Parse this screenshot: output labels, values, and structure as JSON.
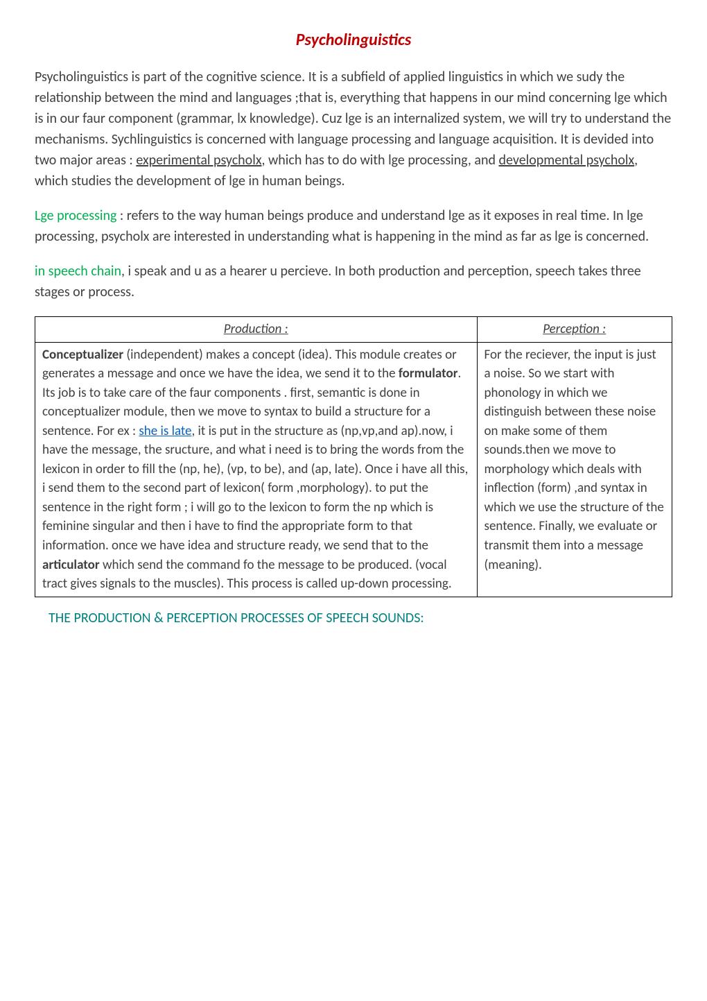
{
  "colors": {
    "title": "#c00000",
    "body_text": "#404040",
    "green_term": "#00b050",
    "link_blue": "#0563c1",
    "footer_teal": "#008080",
    "black": "#000000"
  },
  "title": "Psycholinguistics",
  "para1_pre": "Psycholinguistics is part of the cognitive science. It is a subfield of applied linguistics in which we sudy the relationship between the mind and languages ;that is, everything that happens in our mind concerning lge which is in our faur component (grammar, lx knowledge). Cuz lge is an internalized system, we will try to understand the mechanisms. Sychlinguistics is concerned with language processing and language acquisition. It is devided into two major areas : ",
  "para1_u1": "experimental psycholx",
  "para1_mid": ", which has to do with lge processing, and ",
  "para1_u2": "developmental psycholx",
  "para1_post": ", which studies the development of lge in human beings.",
  "para2_term": "Lge processing",
  "para2_rest": " : refers to the way human beings produce and understand lge as it exposes in real time. In lge processing, psycholx are interested in understanding what is happening in the mind as far as lge is concerned.",
  "para3_term": "in speech chain",
  "para3_rest": ", i speak and u as a hearer u percieve. In both production and perception, speech takes three stages or process.",
  "table": {
    "header_left": "Production :",
    "header_right": "Perception :",
    "left": {
      "bold1": "Conceptualizer",
      "seg1": " (independent) makes a concept (idea). This module creates or generates a message and once we have the idea, we send it to the ",
      "bold2": "formulator",
      "seg2": ". Its job is to take care of the faur components . first, semantic is done in conceptualizer module, then we move to syntax to  build a structure for a sentence. For ex : ",
      "link": "she is late",
      "seg3": ", it is put in the structure as (np,vp,and ap).now, i have the message, the sructure, and what i need is to bring the words from the lexicon in order to fill the (np, he), (vp, to be), and (ap, late). Once i have all this, i send them to the second part of lexicon( form ,morphology). to put the sentence in the right form ; i will go to the lexicon to form the np which is feminine singular and then i have to find the appropriate form to that information. once we have idea and structure ready, we send that to the ",
      "bold3": "articulator",
      "seg4": " which send the command fo the message to be produced. (vocal tract gives signals to the muscles). This process is called up-down processing."
    },
    "right": "For the reciever, the input is just a noise. So we start with phonology in which we distinguish between these noise on make some of them sounds.then we move to morphology which deals with inflection (form) ,and syntax in which we use the structure of the sentence. Finally, we evaluate or transmit them into a message (meaning)."
  },
  "footer": "THE PRODUCTION & PERCEPTION PROCESSES OF SPEECH SOUNDS:"
}
